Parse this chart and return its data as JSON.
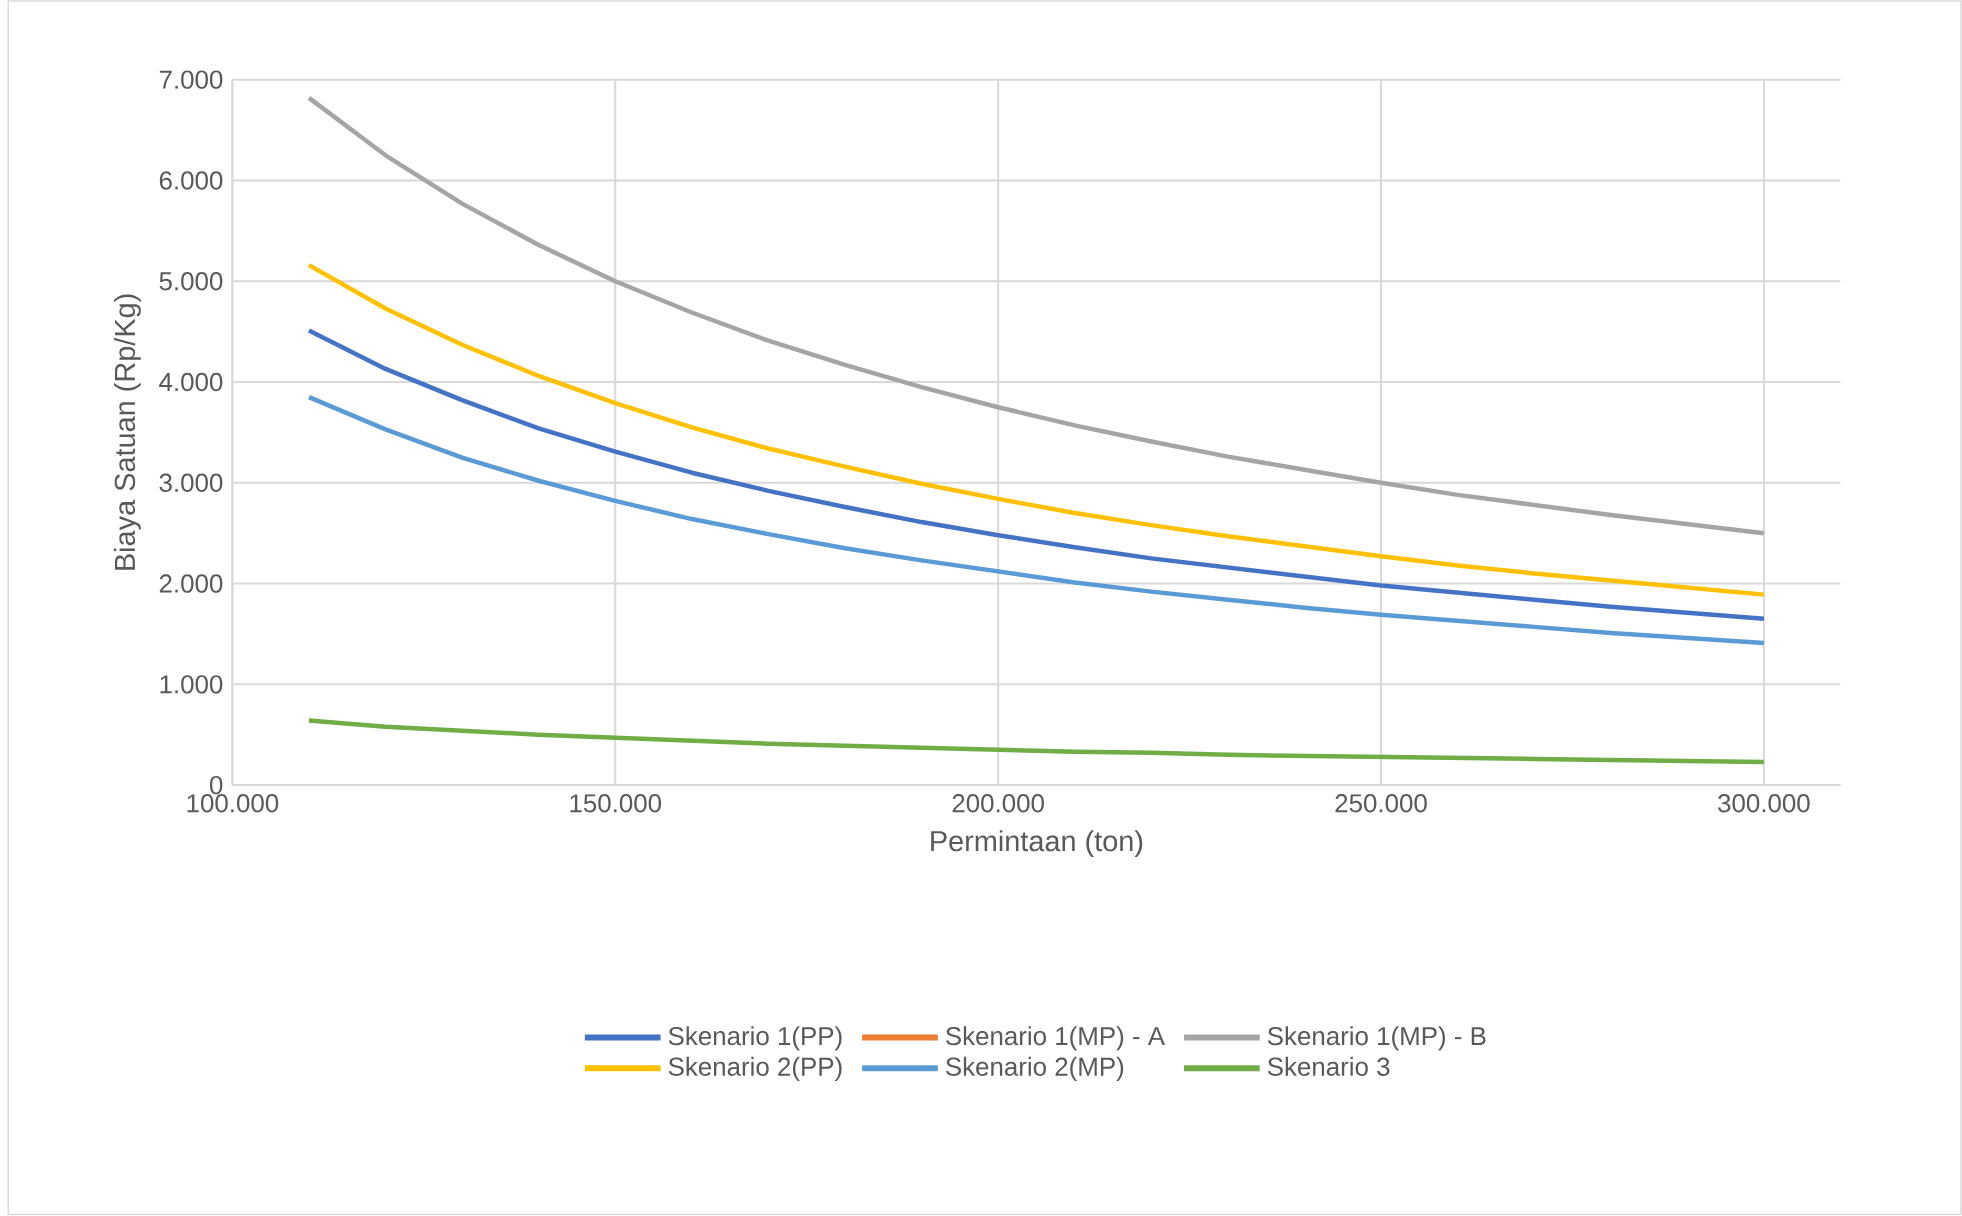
{
  "chart_data": {
    "type": "line",
    "xlabel": "Permintaan (ton)",
    "ylabel": "Biaya Satuan (Rp/Kg)",
    "x": [
      110000,
      120000,
      130000,
      140000,
      150000,
      160000,
      170000,
      180000,
      190000,
      200000,
      210000,
      220000,
      230000,
      240000,
      250000,
      260000,
      270000,
      280000,
      290000,
      300000
    ],
    "series": [
      {
        "name": "Skenario 1(PP)",
        "color": "#4472c4",
        "values": [
          4510,
          4130,
          3820,
          3540,
          3310,
          3100,
          2920,
          2760,
          2610,
          2480,
          2360,
          2250,
          2160,
          2070,
          1980,
          1910,
          1840,
          1770,
          1710,
          1650
        ]
      },
      {
        "name": "Skenario 1(MP) - A",
        "color": "#ed7d31",
        "values": [
          null,
          null,
          null,
          null,
          null,
          null,
          null,
          null,
          null,
          null,
          null,
          null,
          null,
          null,
          null,
          null,
          null,
          null,
          null,
          null
        ]
      },
      {
        "name": "Skenario 1(MP) - B",
        "color": "#a5a5a5",
        "values": [
          6820,
          6250,
          5770,
          5360,
          5000,
          4690,
          4410,
          4170,
          3950,
          3750,
          3570,
          3410,
          3260,
          3130,
          3000,
          2880,
          2780,
          2680,
          2590,
          2500
        ]
      },
      {
        "name": "Skenario 2(PP)",
        "color": "#ffc000",
        "values": [
          5160,
          4730,
          4370,
          4060,
          3790,
          3550,
          3340,
          3160,
          2990,
          2840,
          2700,
          2580,
          2470,
          2370,
          2270,
          2180,
          2100,
          2030,
          1960,
          1890
        ]
      },
      {
        "name": "Skenario 2(MP)",
        "color": "#5b9bd5",
        "values": [
          3850,
          3530,
          3250,
          3020,
          2820,
          2640,
          2490,
          2350,
          2230,
          2120,
          2010,
          1920,
          1840,
          1760,
          1690,
          1630,
          1570,
          1510,
          1460,
          1410
        ]
      },
      {
        "name": "Skenario 3",
        "color": "#70ad47",
        "values": [
          640,
          580,
          540,
          500,
          470,
          440,
          410,
          390,
          370,
          350,
          330,
          320,
          300,
          290,
          280,
          270,
          260,
          250,
          240,
          230
        ]
      }
    ],
    "xlim": [
      100000,
      310000
    ],
    "xticks": [
      {
        "value": 100000,
        "label": "100.000"
      },
      {
        "value": 150000,
        "label": "150.000"
      },
      {
        "value": 200000,
        "label": "200.000"
      },
      {
        "value": 250000,
        "label": "250.000"
      },
      {
        "value": 300000,
        "label": "300.000"
      }
    ],
    "ylim": [
      0,
      7000
    ],
    "yticks": [
      0,
      {
        "value": 1000,
        "label": "1.000"
      },
      {
        "value": 2000,
        "label": "2.000"
      },
      {
        "value": 3000,
        "label": "3.000"
      },
      {
        "value": 4000,
        "label": "4.000"
      },
      {
        "value": 5000,
        "label": "5.000"
      },
      {
        "value": 6000,
        "label": "6.000"
      },
      {
        "value": 7000,
        "label": "7.000"
      }
    ],
    "grid": true,
    "legend": "bottom",
    "marker": "none",
    "line_style": "solid"
  }
}
